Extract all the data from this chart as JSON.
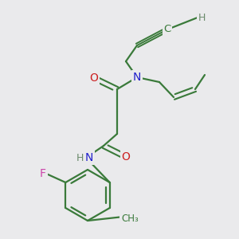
{
  "bg_color": "#eaeaec",
  "bond_color": "#3a7a3a",
  "atom_colors": {
    "N": "#2020cc",
    "O": "#cc2020",
    "F": "#cc44aa",
    "H": "#6a8a6a",
    "C": "#3a7a3a"
  },
  "figsize": [
    3.0,
    3.0
  ],
  "dpi": 100
}
